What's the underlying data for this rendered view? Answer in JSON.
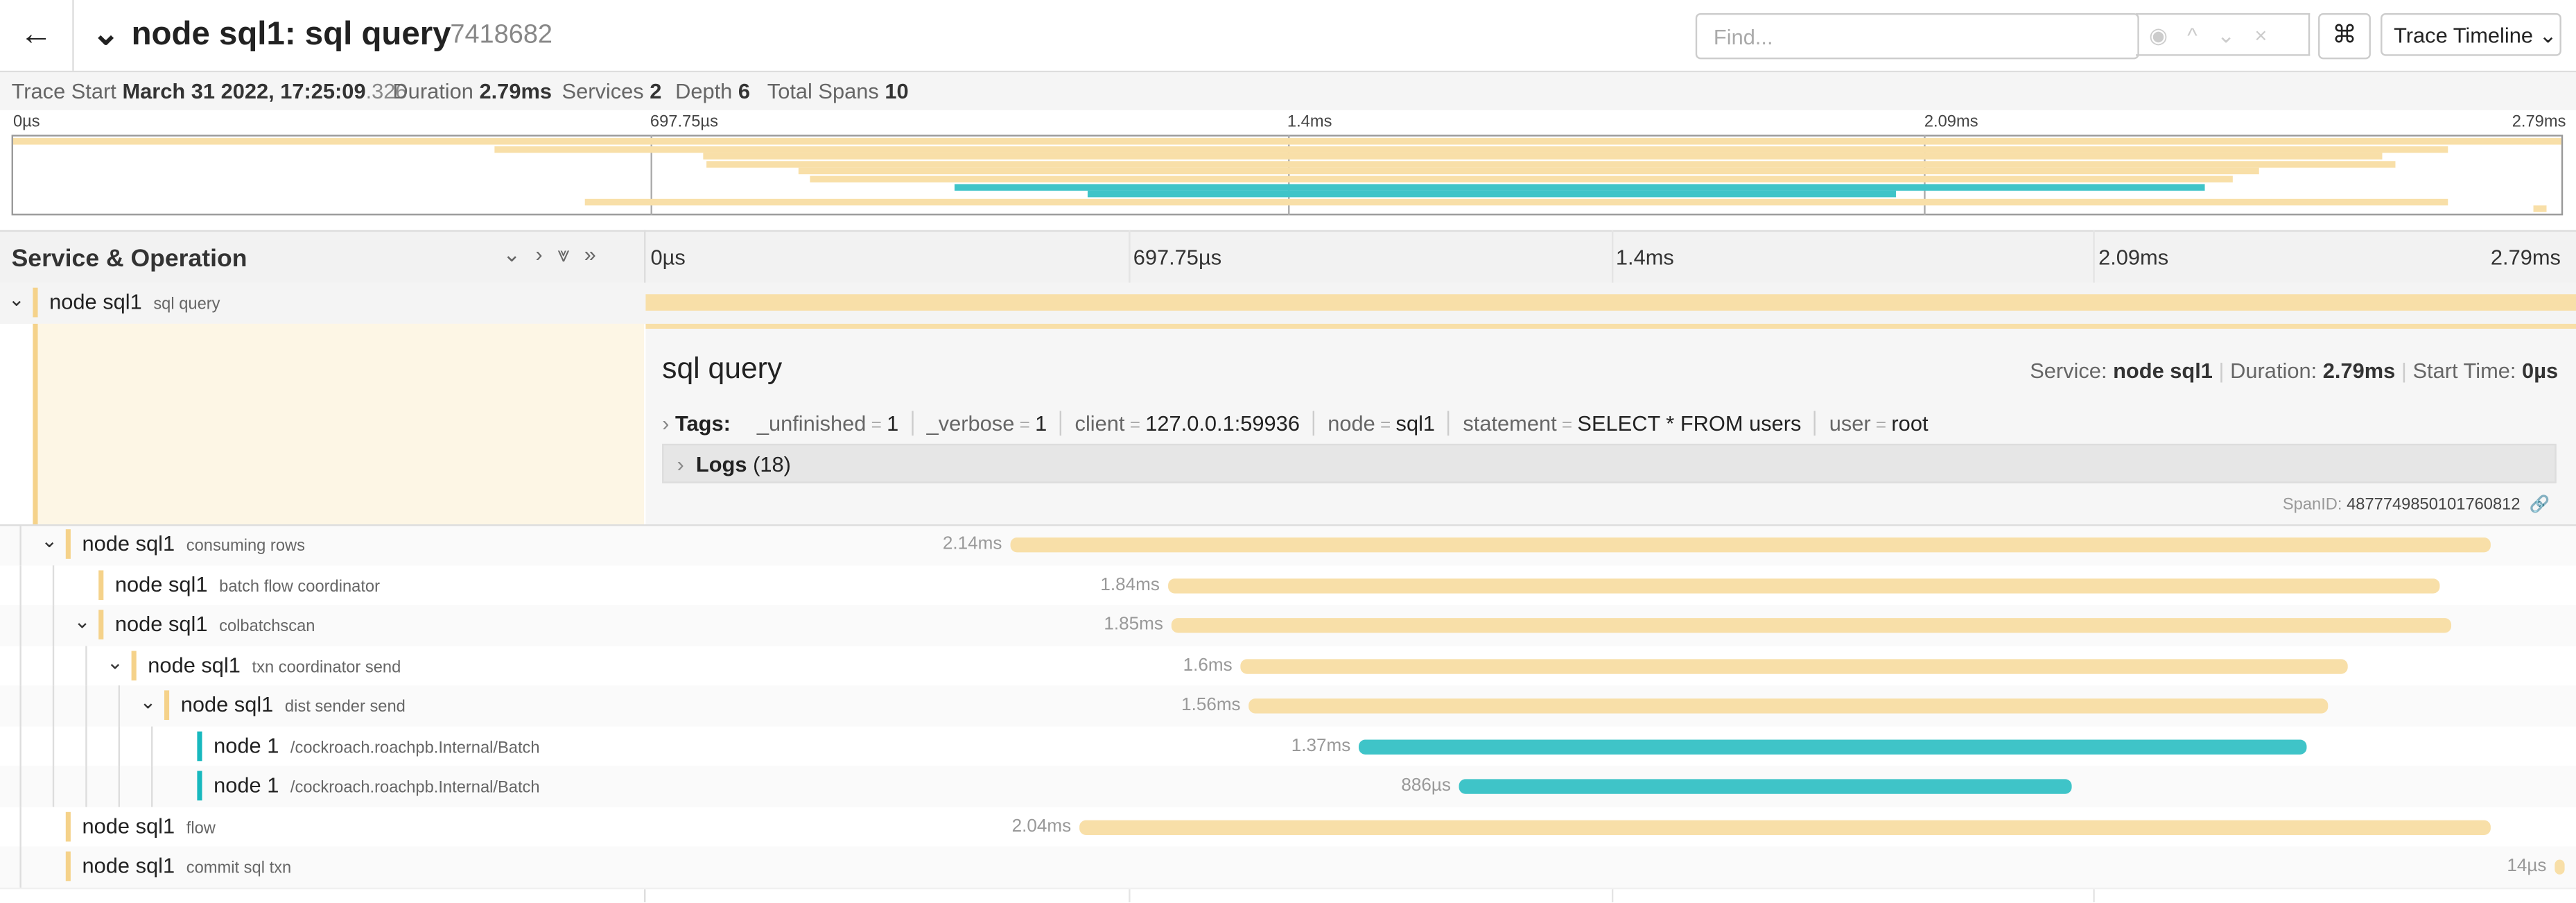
{
  "header": {
    "title": "node sql1: sql query",
    "trace_id": "7418682",
    "find_placeholder": "Find...",
    "view_label": "Trace Timeline"
  },
  "summary": {
    "trace_start_label": "Trace Start",
    "trace_start_date": "March 31 2022, 17:25:09",
    "trace_start_ms": ".326",
    "duration_label": "Duration",
    "duration": "2.79ms",
    "services_label": "Services",
    "services": "2",
    "depth_label": "Depth",
    "depth": "6",
    "total_spans_label": "Total Spans",
    "total_spans": "10"
  },
  "timeline": {
    "xlim": [
      0,
      2791
    ],
    "ticks": [
      {
        "value": 0,
        "label": "0µs"
      },
      {
        "value": 697.75,
        "label": "697.75µs"
      },
      {
        "value": 1395.5,
        "label": "1.4ms"
      },
      {
        "value": 2093.25,
        "label": "2.09ms"
      },
      {
        "value": 2791,
        "label": "2.79ms"
      }
    ]
  },
  "column_title": "Service & Operation",
  "spans": [
    {
      "service": "node sql1",
      "operation": "sql query",
      "depth": 0,
      "expandable": true,
      "start": 0,
      "duration": 2791,
      "color": "#f8dfa8",
      "swatch": "#f5d28a"
    },
    {
      "service": "node sql1",
      "operation": "consuming rows",
      "depth": 1,
      "expandable": true,
      "start": 527,
      "duration": 2140,
      "duration_label": "2.14ms",
      "color": "#f8dfa8",
      "swatch": "#f5d28a"
    },
    {
      "service": "node sql1",
      "operation": "batch flow coordinator",
      "depth": 2,
      "expandable": false,
      "start": 755,
      "duration": 1840,
      "duration_label": "1.84ms",
      "color": "#f8dfa8",
      "swatch": "#f5d28a"
    },
    {
      "service": "node sql1",
      "operation": "colbatchscan",
      "depth": 2,
      "expandable": true,
      "start": 760,
      "duration": 1850,
      "duration_label": "1.85ms",
      "color": "#f8dfa8",
      "swatch": "#f5d28a"
    },
    {
      "service": "node sql1",
      "operation": "txn coordinator send",
      "depth": 3,
      "expandable": true,
      "start": 860,
      "duration": 1600,
      "duration_label": "1.6ms",
      "color": "#f8dfa8",
      "swatch": "#f5d28a"
    },
    {
      "service": "node sql1",
      "operation": "dist sender send",
      "depth": 4,
      "expandable": true,
      "start": 872,
      "duration": 1560,
      "duration_label": "1.56ms",
      "color": "#f8dfa8",
      "swatch": "#f5d28a"
    },
    {
      "service": "node 1",
      "operation": "/cockroach.roachpb.Internal/Batch",
      "depth": 5,
      "expandable": false,
      "start": 1031,
      "duration": 1370,
      "duration_label": "1.37ms",
      "color": "#3fc4c8",
      "swatch": "#17b8be"
    },
    {
      "service": "node 1",
      "operation": "/cockroach.roachpb.Internal/Batch",
      "depth": 5,
      "expandable": false,
      "start": 1176,
      "duration": 886,
      "duration_label": "886µs",
      "color": "#3fc4c8",
      "swatch": "#17b8be"
    },
    {
      "service": "node sql1",
      "operation": "flow",
      "depth": 1,
      "expandable": false,
      "start": 627,
      "duration": 2040,
      "duration_label": "2.04ms",
      "color": "#f8dfa8",
      "swatch": "#f5d28a"
    },
    {
      "service": "node sql1",
      "operation": "commit sql txn",
      "depth": 1,
      "expandable": false,
      "start": 2760,
      "duration": 14,
      "duration_label": "14µs",
      "color": "#f8dfa8",
      "swatch": "#f5d28a"
    }
  ],
  "detail": {
    "title": "sql query",
    "service_label": "Service:",
    "service": "node sql1",
    "duration_label": "Duration:",
    "duration": "2.79ms",
    "start_label": "Start Time:",
    "start": "0µs",
    "tags_label": "Tags:",
    "tags": [
      {
        "key": "_unfinished",
        "value": "1"
      },
      {
        "key": "_verbose",
        "value": "1"
      },
      {
        "key": "client",
        "value": "127.0.0.1:59936"
      },
      {
        "key": "node",
        "value": "sql1"
      },
      {
        "key": "statement",
        "value": "SELECT * FROM users"
      },
      {
        "key": "user",
        "value": "root"
      }
    ],
    "logs_label": "Logs",
    "logs_count": "(18)",
    "span_id_label": "SpanID:",
    "span_id": "4877749850101760812"
  }
}
